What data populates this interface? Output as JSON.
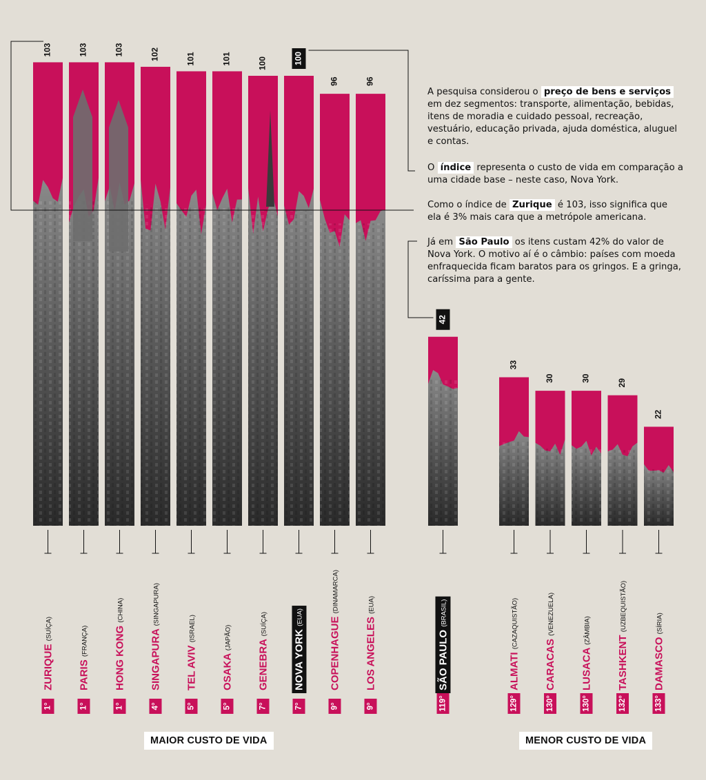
{
  "chart_data": {
    "type": "bar",
    "title": "",
    "ylabel": "",
    "groups": [
      {
        "label": "MAIOR CUSTO DE VIDA",
        "bars": [
          {
            "rank": "1°",
            "city": "ZURIQUE",
            "country": "(SUÍÇA)",
            "value": 103
          },
          {
            "rank": "1°",
            "city": "PARIS",
            "country": "(FRANÇA)",
            "value": 103
          },
          {
            "rank": "1°",
            "city": "HONG KONG",
            "country": "(CHINA)",
            "value": 103
          },
          {
            "rank": "4°",
            "city": "SINGAPURA",
            "country": "(SINGAPURA)",
            "value": 102
          },
          {
            "rank": "5°",
            "city": "TEL AVIV",
            "country": "(ISRAEL)",
            "value": 101
          },
          {
            "rank": "5°",
            "city": "OSAKA",
            "country": "(JAPÃO)",
            "value": 101
          },
          {
            "rank": "7°",
            "city": "GENEBRA",
            "country": "(SUÍÇA)",
            "value": 100
          },
          {
            "rank": "7°",
            "city": "NOVA YORK",
            "country": "(EUA)",
            "value": 100,
            "highlight": true
          },
          {
            "rank": "9°",
            "city": "COPENHAGUE",
            "country": "(DINAMARCA)",
            "value": 96
          },
          {
            "rank": "9°",
            "city": "LOS ANGELES",
            "country": "(EUA)",
            "value": 96
          }
        ]
      },
      {
        "label": "",
        "bars": [
          {
            "rank": "119°",
            "city": "SÃO PAULO",
            "country": "(BRASIL)",
            "value": 42,
            "highlight": true
          }
        ]
      },
      {
        "label": "MENOR CUSTO DE VIDA",
        "bars": [
          {
            "rank": "129°",
            "city": "ALMATI",
            "country": "(CAZAQUISTÃO)",
            "value": 33
          },
          {
            "rank": "130°",
            "city": "CARACAS",
            "country": "(VENEZUELA)",
            "value": 30
          },
          {
            "rank": "130°",
            "city": "LUSACA",
            "country": "(ZÂMBIA)",
            "value": 30
          },
          {
            "rank": "132°",
            "city": "TASHKENT",
            "country": "(UZBEQUISTÃO)",
            "value": 29
          },
          {
            "rank": "133°",
            "city": "DAMASCO",
            "country": "(SÍRIA)",
            "value": 22
          }
        ]
      }
    ],
    "colors": {
      "accent": "#c8105a",
      "background": "#e2ded6",
      "highlight_box": "#111111",
      "photo_dark": "#2f2f2f"
    }
  },
  "notes": {
    "p1_before": "A pesquisa considerou o ",
    "p1_hl": "preço de bens e serviços",
    "p1_after": " em dez segmentos: transporte, alimentação, bebidas, itens de moradia e cuidado pessoal, recreação, vestuário, educação privada, ajuda doméstica, aluguel e contas.",
    "p2_before": "O ",
    "p2_hl": "índice",
    "p2_after": " representa o custo de vida em comparação a uma cidade base – neste caso, Nova York.",
    "p3_before": "Como o índice de ",
    "p3_hl": "Zurique",
    "p3_after": " é 103, isso significa que ela é 3% mais cara que a metrópole americana.",
    "p4_before": "Já em ",
    "p4_hl": "São Paulo",
    "p4_after": " os itens custam 42% do valor de Nova York. O motivo aí é o câmbio: países com moeda enfraquecida ficam baratos para os gringos. E a gringa, caríssima para a gente."
  },
  "footer": {
    "left": "MAIOR CUSTO DE VIDA",
    "right": "MENOR CUSTO DE VIDA"
  }
}
